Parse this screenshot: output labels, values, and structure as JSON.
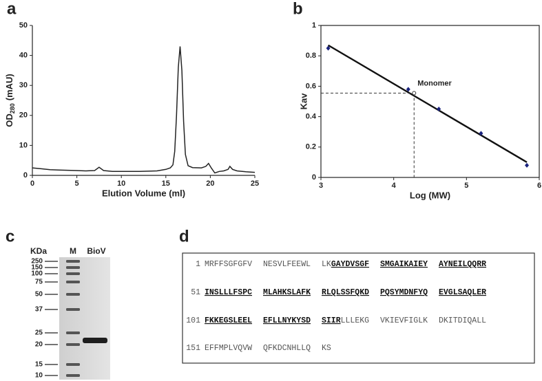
{
  "chart_data": [
    {
      "type": "line",
      "panel_label": "a",
      "xlabel": "Elution Volume (ml)",
      "ylabel": [
        "OD",
        "280",
        "(mAU)"
      ],
      "x": [
        0,
        1,
        2,
        3,
        4,
        5,
        6,
        7,
        7.5,
        8,
        9,
        10,
        11,
        12,
        13,
        14,
        15,
        15.5,
        15.8,
        16,
        16.2,
        16.4,
        16.6,
        16.8,
        17,
        17.2,
        17.5,
        18,
        19,
        19.5,
        19.8,
        20.1,
        20.5,
        21,
        21.5,
        22,
        22.2,
        22.5,
        23,
        24,
        25
      ],
      "values": [
        2.5,
        2.2,
        1.9,
        1.8,
        1.7,
        1.6,
        1.5,
        1.6,
        2.7,
        1.6,
        1.3,
        1.3,
        1.3,
        1.3,
        1.4,
        1.5,
        2.0,
        2.5,
        3.5,
        8,
        20,
        36,
        43,
        35,
        18,
        7,
        3.2,
        2.6,
        2.5,
        3.0,
        4.0,
        2.5,
        0.8,
        1.3,
        1.5,
        2.0,
        3.0,
        2.0,
        1.5,
        1.2,
        1.0
      ],
      "color": "#222222",
      "xlim": [
        0,
        25
      ],
      "xticks": [
        0,
        5,
        10,
        15,
        20,
        25
      ],
      "ylim": [
        0,
        50
      ],
      "yticks": [
        0,
        10,
        20,
        30,
        40,
        50
      ]
    },
    {
      "type": "scatter",
      "panel_label": "b",
      "xlabel": "Log (MW)",
      "ylabel": "Kav",
      "x": [
        3.1,
        4.2,
        4.62,
        5.2,
        5.83
      ],
      "values": [
        0.85,
        0.58,
        0.45,
        0.29,
        0.08
      ],
      "color": "#1a237e",
      "fit": {
        "x": [
          3.1,
          5.83
        ],
        "values": [
          0.87,
          0.1
        ]
      },
      "annotation": {
        "text": "Monomer",
        "x": 4.28,
        "y": 0.555
      },
      "xlim": [
        3,
        6
      ],
      "xticks": [
        3,
        4,
        5,
        6
      ],
      "ylim": [
        0,
        1
      ],
      "yticks": [
        0,
        0.2,
        0.4,
        0.6,
        0.8,
        1
      ]
    }
  ],
  "gel": {
    "panel_label": "c",
    "unit_label": "KDa",
    "lanes": [
      "M",
      "BioV"
    ],
    "markers": [
      250,
      150,
      100,
      75,
      50,
      37,
      25,
      20,
      15,
      10
    ]
  },
  "sequence": {
    "panel_label": "d",
    "lines": [
      {
        "number": 1,
        "groups": [
          [
            {
              "text": "MRFFSGFGFV",
              "bold": false
            }
          ],
          [
            {
              "text": "NESVLFEEWL",
              "bold": false
            }
          ],
          [
            {
              "text": "LK",
              "bold": false
            },
            {
              "text": "GAYDVSGF",
              "bold": true
            }
          ],
          [
            {
              "text": "SMGAIKAIEY",
              "bold": true
            }
          ],
          [
            {
              "text": "AYNEILQQRR",
              "bold": true
            }
          ]
        ]
      },
      {
        "number": 51,
        "groups": [
          [
            {
              "text": "INSLLLFSPC",
              "bold": true
            }
          ],
          [
            {
              "text": "MLAHKSLAFK",
              "bold": true
            }
          ],
          [
            {
              "text": "RLQLSSFQKD",
              "bold": true
            }
          ],
          [
            {
              "text": "PQSYMDNFYQ",
              "bold": true
            }
          ],
          [
            {
              "text": "EVGLSAQLER",
              "bold": true
            }
          ]
        ]
      },
      {
        "number": 101,
        "groups": [
          [
            {
              "text": "FKKEGSLEEL",
              "bold": true
            }
          ],
          [
            {
              "text": "EFLLNYKYSD",
              "bold": true
            }
          ],
          [
            {
              "text": "SIIR",
              "bold": true
            },
            {
              "text": "LLLEKG",
              "bold": false
            }
          ],
          [
            {
              "text": "VKIEVFIGLK",
              "bold": false
            }
          ],
          [
            {
              "text": "DKITDIQALL",
              "bold": false
            }
          ]
        ]
      },
      {
        "number": 151,
        "groups": [
          [
            {
              "text": "EFFMPLVQVW",
              "bold": false
            }
          ],
          [
            {
              "text": "QFKDCNHLLQ",
              "bold": false
            }
          ],
          [
            {
              "text": "KS",
              "bold": false
            }
          ]
        ]
      }
    ]
  }
}
